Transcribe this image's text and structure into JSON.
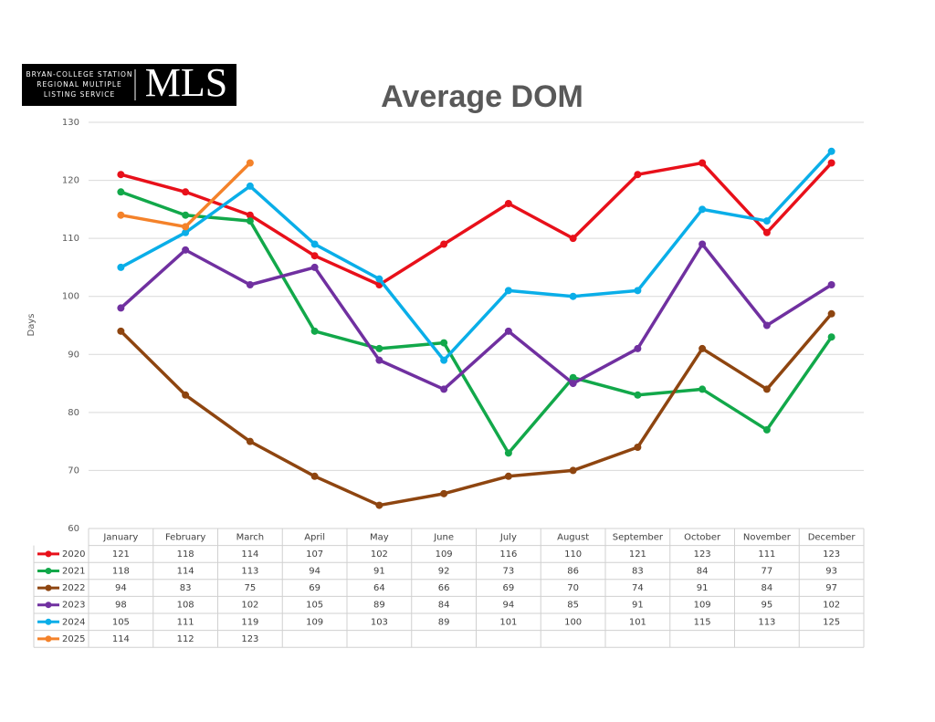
{
  "logo": {
    "lines": [
      "BRYAN-COLLEGE STATION",
      "REGIONAL MULTIPLE",
      "LISTING SERVICE"
    ],
    "mark": "MLS"
  },
  "chart_data": {
    "type": "line",
    "title": "Average DOM",
    "y_label": "Days",
    "categories": [
      "January",
      "February",
      "March",
      "April",
      "May",
      "June",
      "July",
      "August",
      "September",
      "October",
      "November",
      "December"
    ],
    "series": [
      {
        "name": "2020",
        "color": "#e8101a",
        "values": [
          121,
          118,
          114,
          107,
          102,
          109,
          116,
          110,
          121,
          123,
          111,
          123
        ]
      },
      {
        "name": "2021",
        "color": "#12a84a",
        "values": [
          118,
          114,
          113,
          94,
          91,
          92,
          73,
          86,
          83,
          84,
          77,
          93
        ]
      },
      {
        "name": "2022",
        "color": "#8e4510",
        "values": [
          94,
          83,
          75,
          69,
          64,
          66,
          69,
          70,
          74,
          91,
          84,
          97
        ]
      },
      {
        "name": "2023",
        "color": "#7030a0",
        "values": [
          98,
          108,
          102,
          105,
          89,
          84,
          94,
          85,
          91,
          109,
          95,
          102
        ]
      },
      {
        "name": "2024",
        "color": "#0aaee8",
        "values": [
          105,
          111,
          119,
          109,
          103,
          89,
          101,
          100,
          101,
          115,
          113,
          125
        ]
      },
      {
        "name": "2025",
        "color": "#f4822a",
        "values": [
          114,
          112,
          123,
          null,
          null,
          null,
          null,
          null,
          null,
          null,
          null,
          null
        ]
      }
    ],
    "ylim": [
      60,
      130
    ],
    "yticks": [
      60,
      70,
      80,
      90,
      100,
      110,
      120,
      130
    ],
    "grid": true
  }
}
